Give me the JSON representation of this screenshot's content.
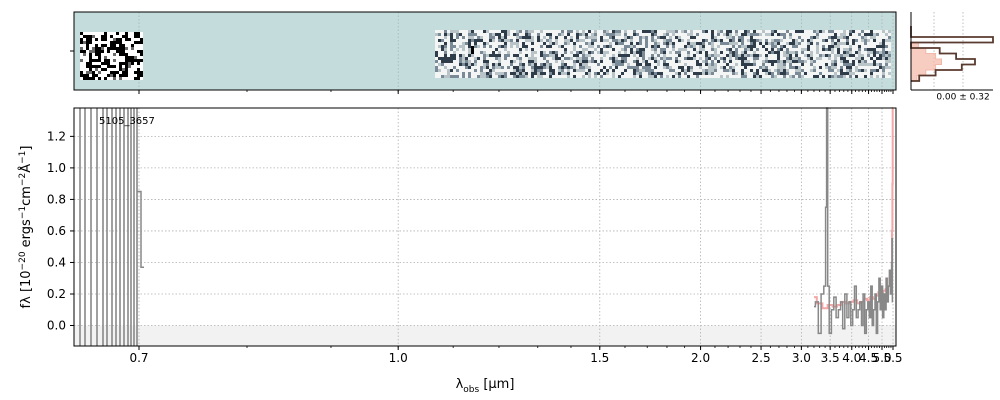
{
  "figure": {
    "object_id": "5105_3657",
    "histogram_label": "0.00 ± 0.32"
  },
  "chart_data": [
    {
      "type": "heatmap",
      "title": "",
      "xlabel": "",
      "ylabel": "",
      "background_color": "#c4dcdb"
    },
    {
      "type": "line",
      "title": "",
      "xlabel": "λobs [μm]",
      "ylabel": "fλ [10⁻²⁰ ergs⁻¹cm⁻²Å⁻¹]",
      "xscale": "reciprocal",
      "xlim": [
        0.55,
        5.52
      ],
      "ylim": [
        -0.13,
        1.38
      ],
      "grid": true,
      "xticks": [
        {
          "value": 0.7,
          "label": "0.7"
        },
        {
          "value": 1.0,
          "label": "1.0"
        },
        {
          "value": 1.5,
          "label": "1.5"
        },
        {
          "value": 2.0,
          "label": "2.0"
        },
        {
          "value": 2.5,
          "label": "2.5"
        },
        {
          "value": 3.0,
          "label": "3.0"
        },
        {
          "value": 3.5,
          "label": "3.5"
        },
        {
          "value": 4.0,
          "label": "4.0"
        },
        {
          "value": 4.5,
          "label": "4.5"
        },
        {
          "value": 5.0,
          "label": "5.0"
        },
        {
          "value": 5.5,
          "label": "5.5"
        }
      ],
      "yticks": [
        {
          "value": 0.0,
          "label": "0.0"
        },
        {
          "value": 0.2,
          "label": "0.2"
        },
        {
          "value": 0.4,
          "label": "0.4"
        },
        {
          "value": 0.6,
          "label": "0.6"
        },
        {
          "value": 0.8,
          "label": "0.8"
        },
        {
          "value": 1.0,
          "label": "1.0"
        },
        {
          "value": 1.2,
          "label": "1.2"
        }
      ],
      "series": [
        {
          "color": "#888888",
          "x": [
            3.2,
            3.25,
            3.3,
            3.35,
            3.4,
            3.42,
            3.44,
            3.46,
            3.5,
            3.55,
            3.6,
            3.65,
            3.7,
            3.75,
            3.8,
            3.85,
            3.9,
            3.95,
            4.0,
            4.05,
            4.1,
            4.15,
            4.2,
            4.25,
            4.3,
            4.35,
            4.4,
            4.45,
            4.5,
            4.55,
            4.6,
            4.65,
            4.7,
            4.75,
            4.8,
            4.85,
            4.9,
            4.95,
            5.0,
            5.05,
            5.1,
            5.15,
            5.2,
            5.25,
            5.3,
            5.35,
            5.4,
            5.42,
            5.44,
            5.46,
            5.48
          ],
          "y": [
            0.12,
            0.15,
            -0.05,
            0.2,
            0.25,
            0.75,
            1.38,
            0.25,
            -0.05,
            0.1,
            0.18,
            0.05,
            0.1,
            0.15,
            -0.02,
            0.2,
            0.05,
            0.15,
            0.0,
            0.1,
            0.25,
            0.05,
            0.1,
            0.15,
            0.0,
            0.2,
            -0.05,
            0.1,
            0.15,
            0.05,
            0.25,
            0.0,
            0.1,
            0.2,
            -0.05,
            0.15,
            0.3,
            0.1,
            0.25,
            0.05,
            0.2,
            0.1,
            0.3,
            0.15,
            0.25,
            0.35,
            0.2,
            0.3,
            0.4,
            0.55,
            0.15
          ]
        },
        {
          "color": "#f4a7a7",
          "x": [
            3.2,
            3.3,
            3.4,
            3.5,
            3.6,
            3.7,
            3.8,
            3.9,
            4.0,
            4.1,
            4.2,
            4.3,
            4.4,
            4.5,
            4.6,
            4.7,
            4.8,
            4.9,
            5.0,
            5.1,
            5.2,
            5.3,
            5.35,
            5.4,
            5.44,
            5.46,
            5.48,
            5.49
          ],
          "y": [
            0.18,
            0.14,
            0.11,
            0.13,
            0.12,
            0.13,
            0.15,
            0.14,
            0.15,
            0.16,
            0.14,
            0.15,
            0.17,
            0.16,
            0.18,
            0.17,
            0.19,
            0.21,
            0.2,
            0.22,
            0.23,
            0.25,
            0.3,
            0.27,
            0.35,
            0.6,
            0.9,
            1.38
          ]
        }
      ]
    },
    {
      "type": "bar",
      "title": "",
      "xlabel": "",
      "ylabel": "",
      "orientation": "horizontal",
      "grid": true,
      "series": [
        {
          "color": "#5a3a2e",
          "values": [
            0.0,
            0.0,
            1.0,
            0.0,
            0.35,
            0.55,
            0.78,
            0.62,
            0.3,
            0.1
          ]
        },
        {
          "color": "#f4b8a8",
          "values": [
            0.0,
            0.0,
            0.0,
            0.15,
            0.3,
            0.5,
            0.62,
            0.5,
            0.3,
            0.12
          ]
        }
      ]
    }
  ]
}
